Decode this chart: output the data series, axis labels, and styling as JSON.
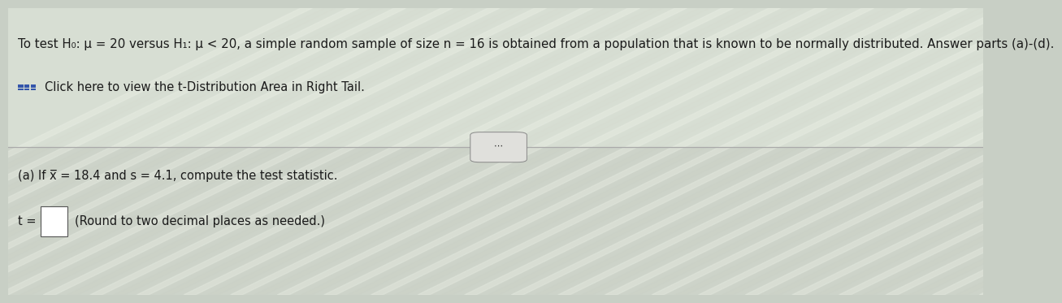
{
  "background_color": "#c8cfc5",
  "top_bg": "#dde3d8",
  "bottom_bg": "#cdd4c8",
  "line1": "To test H₀: μ = 20 versus H₁: μ < 20, a simple random sample of size n = 16 is obtained from a population that is known to be normally distributed. Answer parts (a)-(d).",
  "line2": "Click here to view the t-Distribution Area in Right Tail.",
  "line3": "(a) If x̅ = 18.4 and s = 4.1, compute the test statistic.",
  "line4_prefix": "t = ",
  "line4_suffix": "(Round to two decimal places as needed.)",
  "text_color": "#1a1a1a",
  "icon_color": "#3355aa",
  "font_size_main": 10.8,
  "font_size_secondary": 10.5,
  "divider_color": "#aaaaaa",
  "dots_box_color": "#e0e0dc",
  "dots_box_border": "#888888",
  "input_box_fill": "#ffffff",
  "input_box_border": "#555555",
  "stripe_color_light": "#e8ede3",
  "stripe_color_dark": "#c5ccc0"
}
